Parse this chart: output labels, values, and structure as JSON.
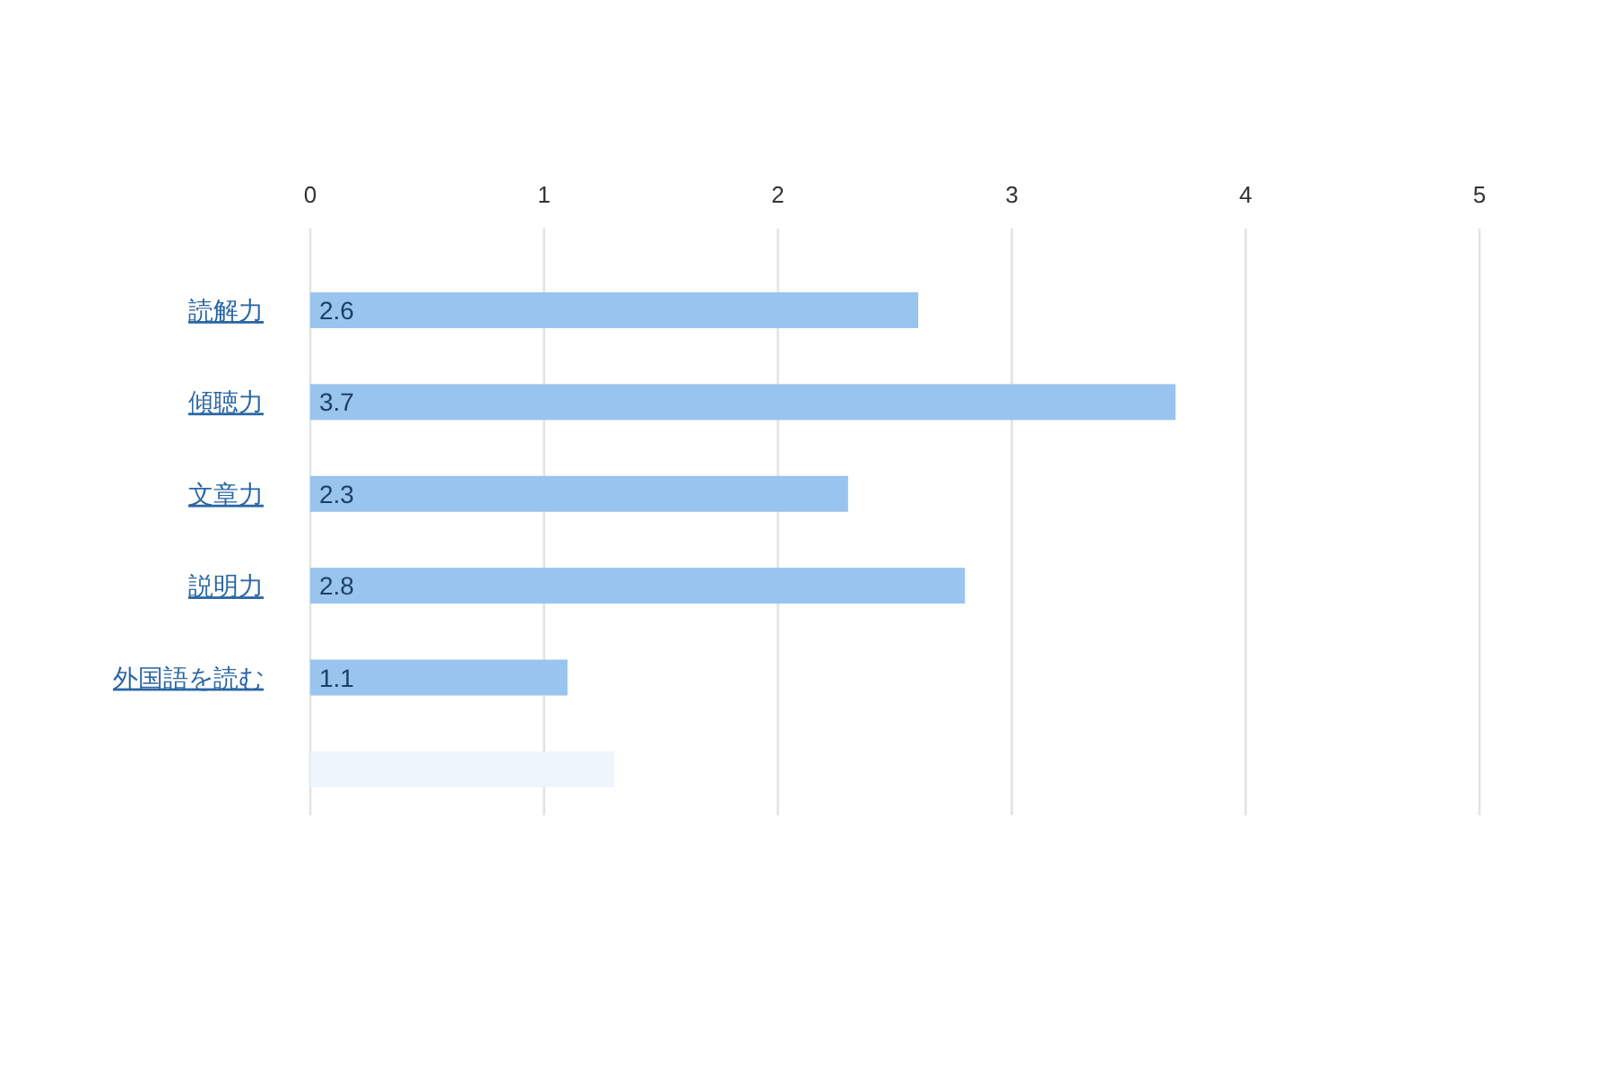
{
  "chart_data": {
    "type": "bar",
    "orientation": "horizontal",
    "categories": [
      "読解力",
      "傾聴力",
      "文章力",
      "説明力",
      "外国語を読む",
      null
    ],
    "values": [
      2.6,
      3.7,
      2.3,
      2.8,
      1.1,
      1.3
    ],
    "colors": [
      "#99c4ee",
      "#99c4ee",
      "#99c4ee",
      "#99c4ee",
      "#99c4ee",
      "#eef5fc"
    ],
    "value_labels": [
      "2.6",
      "3.7",
      "2.3",
      "2.8",
      "1.1",
      null
    ],
    "xlim": [
      0,
      5
    ],
    "xticks": [
      0,
      1,
      2,
      3,
      4,
      5
    ],
    "grid": "x"
  }
}
